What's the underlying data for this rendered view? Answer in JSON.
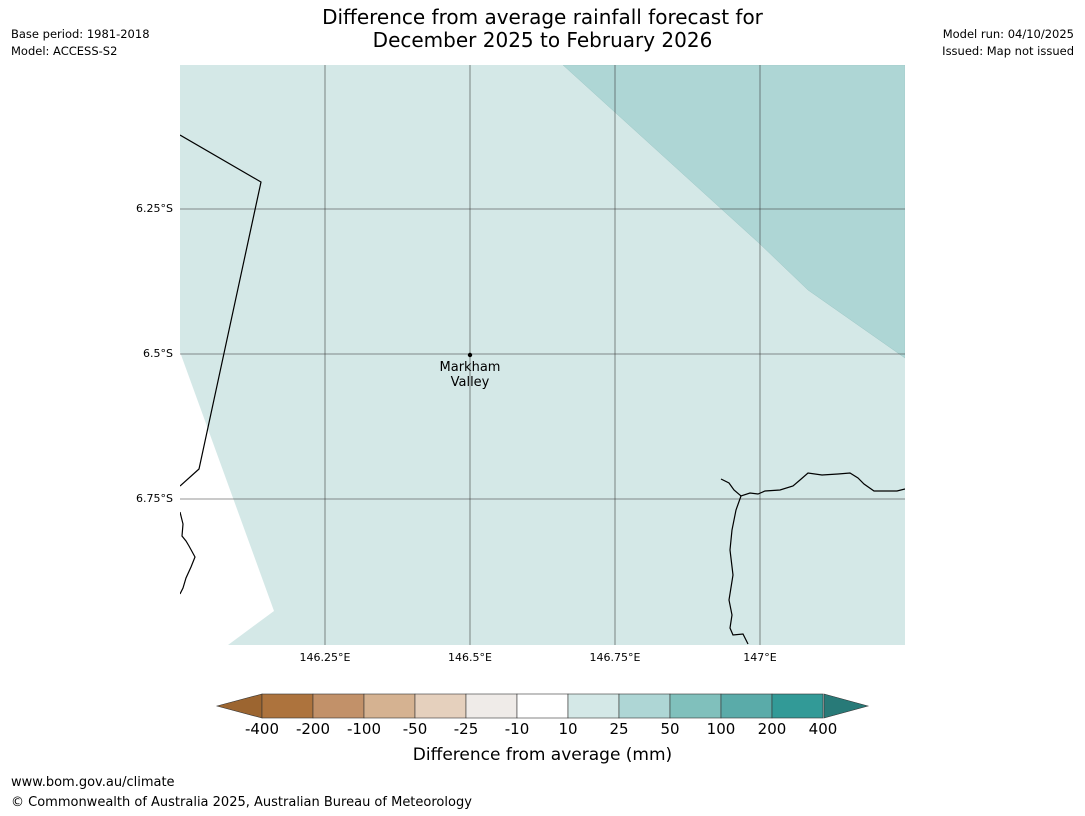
{
  "header": {
    "title_line1": "Difference from average rainfall forecast for",
    "title_line2": "December 2025 to February 2026",
    "base_period": "Base period: 1981-2018",
    "model": "Model: ACCESS-S2",
    "model_run": "Model run: 04/10/2025",
    "issued": "Issued: Map not issued"
  },
  "map": {
    "lat_labels": [
      "6.25°S",
      "6.5°S",
      "6.75°S"
    ],
    "lon_labels": [
      "146.25°E",
      "146.5°E",
      "146.75°E",
      "147°E"
    ],
    "place": {
      "name_line1": "Markham",
      "name_line2": "Valley"
    },
    "colors": {
      "cat_10_25": "#d4e8e7",
      "cat_25_50": "#aed6d5",
      "grid": "#333333"
    }
  },
  "colorbar": {
    "labels": [
      "-400",
      "-200",
      "-100",
      "-50",
      "-25",
      "-10",
      "10",
      "25",
      "50",
      "100",
      "200",
      "400"
    ],
    "colors": [
      "#9c6530",
      "#ad733d",
      "#c29169",
      "#d5b291",
      "#e5d0bd",
      "#efebe8",
      "#ffffff",
      "#d4e8e7",
      "#aed6d5",
      "#80c0bc",
      "#5aaba9",
      "#329a97",
      "#287a78"
    ],
    "title": "Difference from average (mm)"
  },
  "footer": {
    "url": "www.bom.gov.au/climate",
    "copyright": "© Commonwealth of Australia 2025, Australian Bureau of Meteorology"
  }
}
